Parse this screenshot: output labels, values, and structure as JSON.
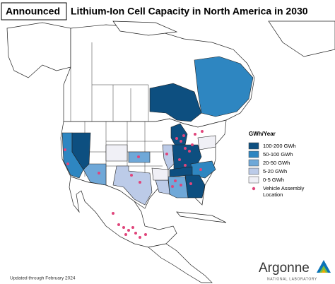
{
  "header": {
    "tag": "Announced",
    "title": "Lithium-Ion Cell Capacity in North America in 2030"
  },
  "legend": {
    "title": "GWh/Year",
    "classes": [
      {
        "label": "100-200 GWh",
        "color": "#0d4f80"
      },
      {
        "label": "50-100 GWh",
        "color": "#2e86c1"
      },
      {
        "label": "20-50 GWh",
        "color": "#6fa8d8"
      },
      {
        "label": "5-20 GWh",
        "color": "#bccbe8"
      },
      {
        "label": "0-5 GWh",
        "color": "#f0f0f6"
      }
    ],
    "marker": {
      "label": "Vehicle Assembly Location",
      "color": "#e0457b"
    }
  },
  "footer": {
    "note": "Updated through February 2024",
    "logo": "Argonne",
    "logo_sub": "NATIONAL LABORATORY"
  }
}
